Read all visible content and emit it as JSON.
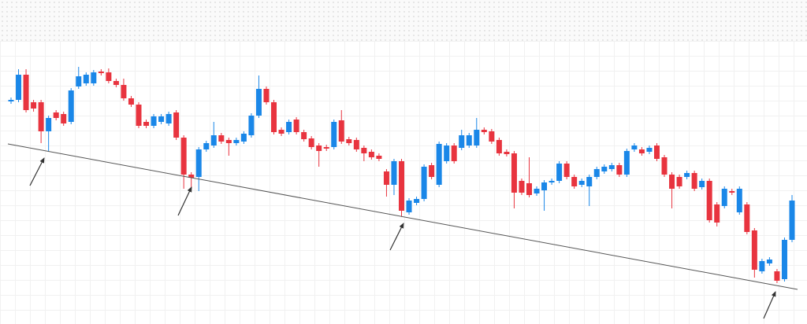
{
  "chart_data": {
    "type": "candlestick",
    "up_color": "#1a87e8",
    "down_color": "#e8343f",
    "ylim": [
      -12,
      400
    ],
    "open": [
      271,
      273,
      305,
      270,
      270,
      233,
      257,
      255,
      245,
      290,
      294,
      294,
      309,
      308,
      297,
      292,
      275,
      267,
      245,
      240,
      245,
      243,
      257,
      225,
      178,
      175,
      210,
      215,
      228,
      222,
      218,
      220,
      228,
      253,
      287,
      270,
      235,
      232,
      248,
      232,
      224,
      215,
      213,
      213,
      247,
      223,
      222,
      212,
      207,
      202,
      182,
      165,
      195,
      130,
      142,
      147,
      190,
      165,
      195,
      215,
      212,
      215,
      215,
      235,
      233,
      222,
      207,
      205,
      170,
      167,
      154,
      158,
      168,
      170,
      192,
      175,
      165,
      163,
      175,
      182,
      185,
      190,
      178,
      210,
      210,
      207,
      215,
      200,
      178,
      175,
      175,
      180,
      162,
      170,
      140,
      138,
      157,
      130,
      140,
      107,
      55,
      65,
      55,
      45,
      95
    ],
    "high": [
      276,
      312,
      312,
      273,
      273,
      253,
      260,
      258,
      288,
      315,
      308,
      311,
      312,
      313,
      300,
      300,
      278,
      270,
      248,
      255,
      255,
      258,
      260,
      228,
      181,
      213,
      221,
      245,
      231,
      225,
      225,
      233,
      256,
      304,
      290,
      273,
      238,
      248,
      251,
      235,
      227,
      218,
      216,
      248,
      260,
      226,
      225,
      215,
      210,
      205,
      185,
      198,
      198,
      148,
      150,
      191,
      193,
      220,
      218,
      218,
      235,
      231,
      250,
      238,
      236,
      225,
      210,
      208,
      173,
      200,
      163,
      171,
      173,
      195,
      195,
      178,
      173,
      178,
      188,
      191,
      193,
      193,
      211,
      218,
      213,
      215,
      218,
      203,
      181,
      178,
      183,
      183,
      173,
      173,
      143,
      163,
      160,
      163,
      143,
      110,
      71,
      73,
      58,
      98,
      152
    ],
    "low": [
      268,
      270,
      257,
      258,
      218,
      208,
      247,
      240,
      242,
      287,
      291,
      291,
      304,
      294,
      289,
      272,
      264,
      237,
      237,
      237,
      242,
      240,
      222,
      160,
      160,
      157,
      207,
      212,
      217,
      202,
      215,
      217,
      225,
      250,
      267,
      229,
      227,
      229,
      229,
      220,
      210,
      188,
      208,
      210,
      217,
      215,
      207,
      195,
      197,
      195,
      150,
      152,
      125,
      127,
      139,
      144,
      172,
      162,
      192,
      192,
      209,
      212,
      212,
      229,
      217,
      202,
      201,
      135,
      152,
      149,
      151,
      132,
      165,
      167,
      172,
      160,
      162,
      138,
      172,
      179,
      182,
      175,
      175,
      207,
      202,
      204,
      195,
      175,
      135,
      160,
      172,
      157,
      159,
      117,
      112,
      135,
      152,
      127,
      102,
      47,
      52,
      62,
      40,
      42,
      92
    ],
    "close": [
      273,
      305,
      260,
      262,
      233,
      250,
      250,
      243,
      285,
      303,
      305,
      308,
      307,
      297,
      292,
      275,
      267,
      240,
      240,
      252,
      252,
      255,
      225,
      178,
      174,
      210,
      218,
      228,
      220,
      218,
      222,
      230,
      253,
      287,
      270,
      232,
      230,
      245,
      232,
      223,
      213,
      208,
      211,
      245,
      220,
      218,
      210,
      205,
      200,
      198,
      165,
      195,
      132,
      145,
      147,
      188,
      175,
      217,
      215,
      195,
      228,
      228,
      235,
      232,
      220,
      205,
      204,
      155,
      155,
      152,
      160,
      168,
      170,
      192,
      175,
      163,
      170,
      175,
      185,
      188,
      190,
      178,
      208,
      215,
      205,
      212,
      198,
      178,
      160,
      163,
      180,
      160,
      170,
      120,
      117,
      160,
      155,
      160,
      105,
      57,
      68,
      70,
      43,
      95,
      145
    ]
  }
}
